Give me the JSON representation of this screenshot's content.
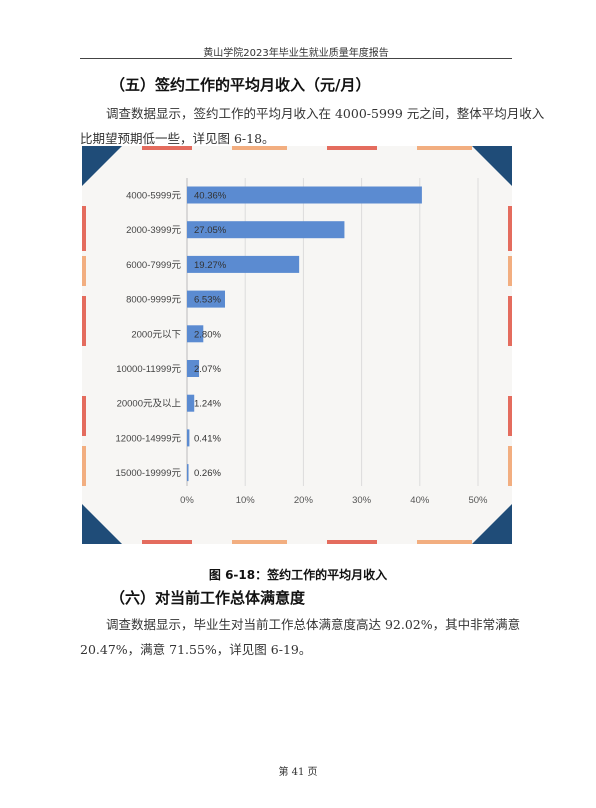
{
  "header": {
    "title": "黄山学院2023年毕业生就业质量年度报告"
  },
  "section5": {
    "heading": "（五）签约工作的平均月收入（元/月）",
    "para_line1": "调查数据显示，签约工作的平均月收入在 4000-5999 元之间，整体平均月收入",
    "para_line2": "比期望预期低一些，详见图 6-18。"
  },
  "chart_data": {
    "type": "bar",
    "orientation": "horizontal",
    "categories": [
      "4000-5999元",
      "2000-3999元",
      "6000-7999元",
      "8000-9999元",
      "2000元以下",
      "10000-11999元",
      "20000元及以上",
      "12000-14999元",
      "15000-19999元"
    ],
    "values": [
      40.36,
      27.05,
      19.27,
      6.53,
      2.8,
      2.07,
      1.24,
      0.41,
      0.26
    ],
    "data_labels": [
      "40.36%",
      "27.05%",
      "19.27%",
      "6.53%",
      "2.80%",
      "2.07%",
      "1.24%",
      "0.41%",
      "0.26%"
    ],
    "xticks": [
      "0%",
      "10%",
      "20%",
      "30%",
      "40%",
      "50%"
    ],
    "xlim": [
      0,
      50
    ],
    "grid": true,
    "bar_color": "#5b8bd1"
  },
  "figure": {
    "caption": "图 6-18：签约工作的平均月收入"
  },
  "section6": {
    "heading": "（六）对当前工作总体满意度",
    "para_line1": "调查数据显示，毕业生对当前工作总体满意度高达 92.02%，其中非常满意",
    "para_line2": "20.47%，满意 71.55%，详见图 6-19。"
  },
  "footer": {
    "page": "第 41 页"
  },
  "colors": {
    "navy": "#1f4c78",
    "coral": "#e46c5e",
    "peach": "#f2ae80",
    "accent": "#5b8bd1"
  }
}
